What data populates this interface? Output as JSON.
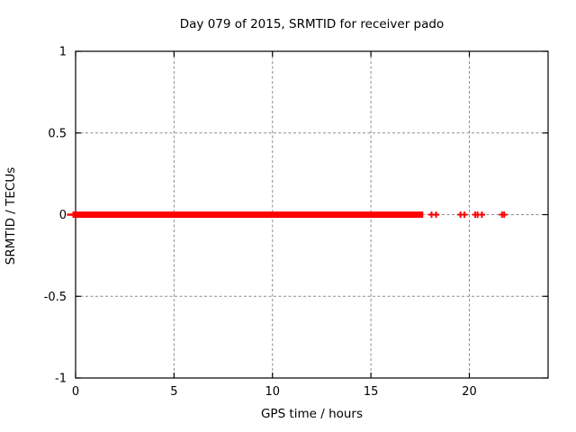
{
  "page": {
    "background": "#ffffff",
    "kind": "gnuplot-style static plot image"
  },
  "chart_data": {
    "type": "scatter",
    "title": "Day 079 of 2015, SRMTID for receiver pado",
    "xlabel": "GPS time / hours",
    "ylabel": "SRMTID / TECUs",
    "xlim": [
      0,
      24
    ],
    "ylim": [
      -1,
      1
    ],
    "xticks": [
      0,
      5,
      10,
      15,
      20
    ],
    "xtick_labels": [
      "0",
      "5",
      "10",
      "15",
      "20"
    ],
    "yticks": [
      -1,
      -0.5,
      0,
      0.5,
      1
    ],
    "ytick_labels": [
      "-1",
      "-0.5",
      "0",
      "0.5",
      "1"
    ],
    "grid": true,
    "grid_style": "dashed",
    "legend": "none",
    "series": [
      {
        "name": "SRMTID",
        "marker": "plus",
        "color": "#ff0000",
        "dense_band": {
          "x_start": 0.0,
          "x_end": 17.5,
          "y": 0.0,
          "note": "continuous dense run of points at y = 0 from hour 0 to ~17.5"
        },
        "edge_point": {
          "x": -0.3,
          "y": 0.0,
          "style": "horizontal-dash"
        },
        "outliers_x": [
          18.08,
          18.31,
          19.55,
          19.75,
          20.3,
          20.42,
          20.64,
          21.66,
          21.77
        ],
        "outliers_y": 0.0
      }
    ],
    "colors": {
      "background": "#ffffff",
      "axis": "#000000",
      "grid": "#8c8c8c",
      "data": "#ff0000",
      "text": "#000000"
    }
  }
}
